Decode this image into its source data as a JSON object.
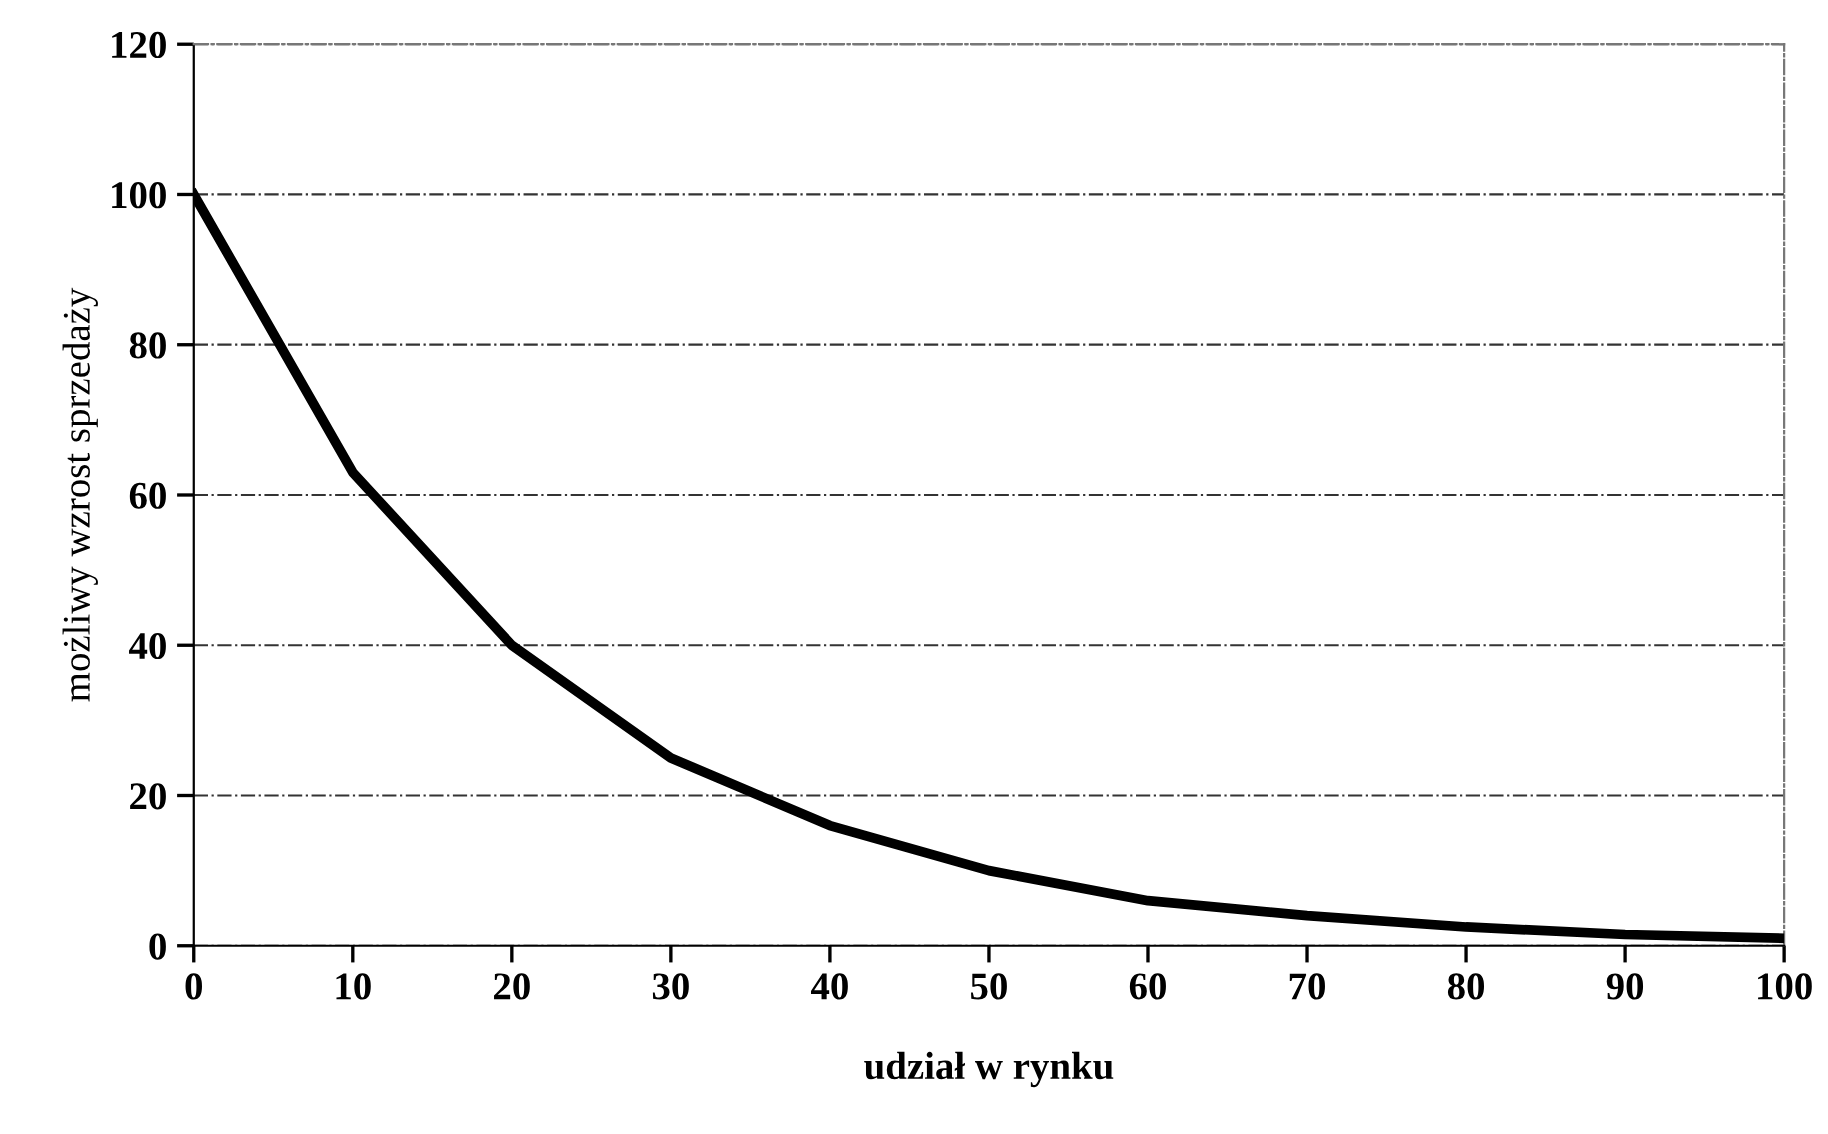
{
  "chart_data": {
    "type": "line",
    "xlabel": "udział w rynku",
    "ylabel": "możliwy wzrost sprzedaży",
    "x": [
      0,
      10,
      20,
      30,
      40,
      50,
      60,
      70,
      80,
      90,
      100
    ],
    "series": [
      {
        "color": "#000000",
        "values": [
          100,
          63,
          40,
          25,
          16,
          10,
          6,
          4,
          2.5,
          1.5,
          1
        ]
      }
    ],
    "xlim": [
      0,
      100
    ],
    "xticks": [
      0,
      10,
      20,
      30,
      40,
      50,
      60,
      70,
      80,
      90,
      100
    ],
    "ylim": [
      0,
      120
    ],
    "yticks": [
      0,
      20,
      40,
      60,
      80,
      100,
      120
    ],
    "grid": "y"
  }
}
